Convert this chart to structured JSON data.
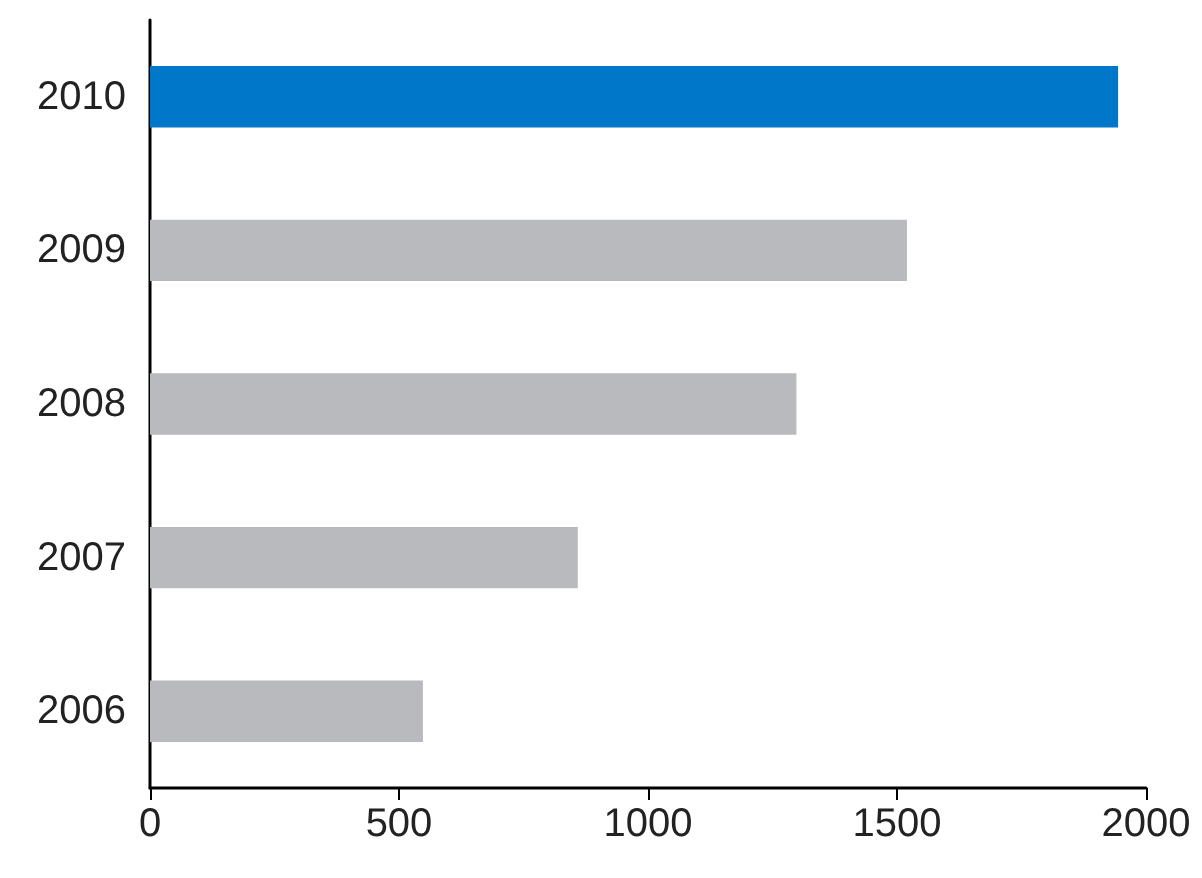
{
  "chart_data": {
    "type": "bar",
    "orientation": "horizontal",
    "categories": [
      "2010",
      "2009",
      "2008",
      "2007",
      "2006"
    ],
    "values": [
      1944,
      1520,
      1298,
      859,
      548
    ],
    "colors": [
      "#0077c8",
      "#b9babd",
      "#b9babd",
      "#b9babd",
      "#b9babd"
    ],
    "xlim": [
      0,
      2000
    ],
    "xticks": [
      0,
      500,
      1000,
      1500,
      2000
    ],
    "grid": false
  }
}
